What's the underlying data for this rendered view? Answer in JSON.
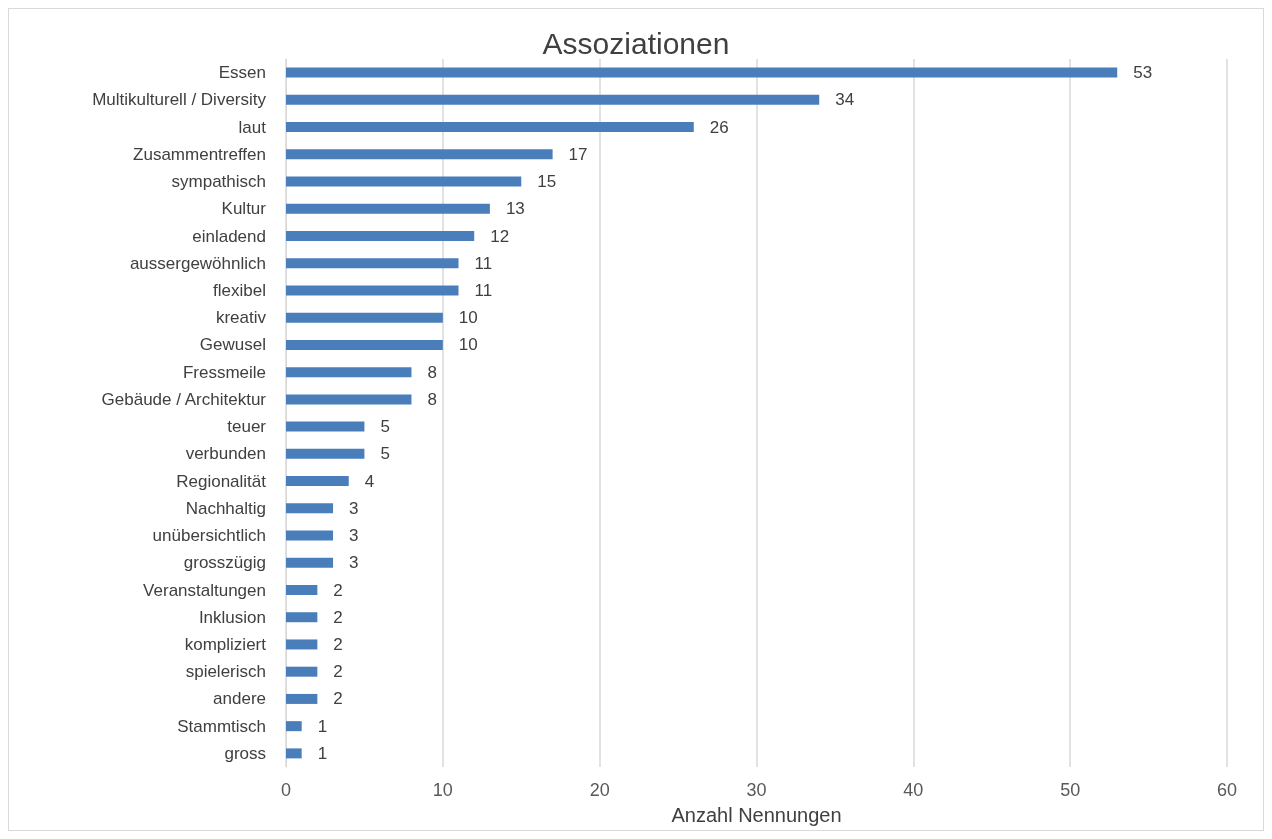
{
  "chart_data": {
    "type": "bar",
    "orientation": "horizontal",
    "title": "Assoziationen",
    "xlabel": "Anzahl Nennungen",
    "categories": [
      "Essen",
      "Multikulturell / Diversity",
      "laut",
      "Zusammentreffen",
      "sympathisch",
      "Kultur",
      "einladend",
      "aussergewöhnlich",
      "flexibel",
      "kreativ",
      "Gewusel",
      "Fressmeile",
      "Gebäude / Architektur",
      "teuer",
      "verbunden",
      "Regionalität",
      "Nachhaltig",
      "unübersichtlich",
      "grosszügig",
      "Veranstaltungen",
      "Inklusion",
      "kompliziert",
      "spielerisch",
      "andere",
      "Stammtisch",
      "gross"
    ],
    "values": [
      53,
      34,
      26,
      17,
      15,
      13,
      12,
      11,
      11,
      10,
      10,
      8,
      8,
      5,
      5,
      4,
      3,
      3,
      3,
      2,
      2,
      2,
      2,
      2,
      1,
      1
    ],
    "color": "#4a7ebb",
    "xlim": [
      0,
      60
    ],
    "xticks": [
      0,
      10,
      20,
      30,
      40,
      50,
      60
    ],
    "grid": "x",
    "data_labels": true
  }
}
